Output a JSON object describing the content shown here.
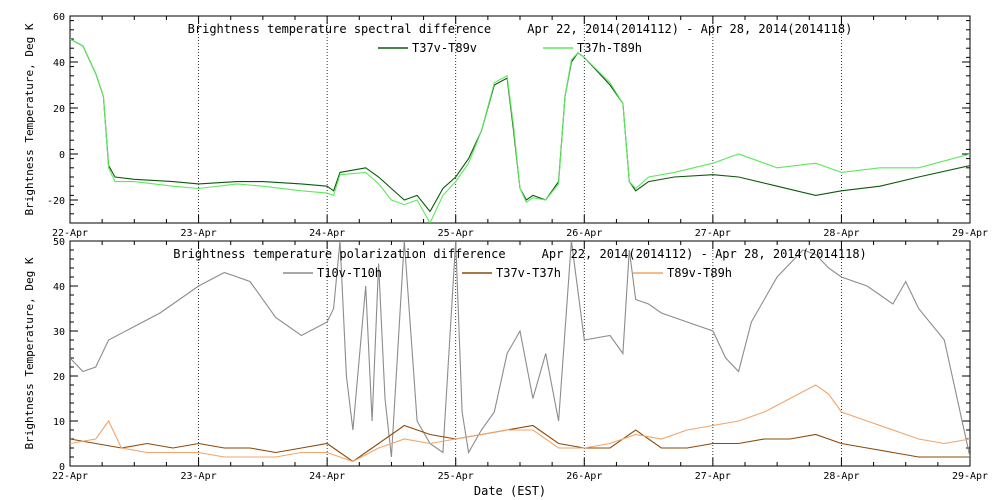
{
  "x_label": "Date (EST)",
  "date_ticks": [
    "22-Apr",
    "23-Apr",
    "24-Apr",
    "25-Apr",
    "26-Apr",
    "27-Apr",
    "28-Apr",
    "29-Apr"
  ],
  "colors": {
    "T37v-T89v": "#0b5a0b",
    "T37h-T89h": "#5ee85e",
    "T10v-T10h": "#8c8c8c",
    "T37v-T37h": "#8b4a0a",
    "T89v-T89h": "#f2a56a"
  },
  "chart_data": [
    {
      "type": "line",
      "title": "Brightness temperature spectral difference     Apr 22, 2014(2014112) - Apr 28, 2014(2014118)",
      "ylabel": "Brightness Temperature, Deg K",
      "xlim": [
        22,
        29
      ],
      "ylim": [
        -30,
        60
      ],
      "yticks": [
        -20,
        0,
        20,
        40,
        60
      ],
      "grid": "vertical dotted at day boundaries",
      "legend": "top-center",
      "series": [
        {
          "name": "T37v-T89v",
          "color": "#0b5a0b",
          "x": [
            22.0,
            22.1,
            22.2,
            22.26,
            22.3,
            22.35,
            22.5,
            22.8,
            23.0,
            23.3,
            23.5,
            23.8,
            24.0,
            24.05,
            24.1,
            24.3,
            24.4,
            24.5,
            24.6,
            24.7,
            24.8,
            24.9,
            25.0,
            25.1,
            25.2,
            25.3,
            25.4,
            25.45,
            25.5,
            25.55,
            25.6,
            25.7,
            25.8,
            25.85,
            25.9,
            25.95,
            26.0,
            26.2,
            26.3,
            26.35,
            26.4,
            26.5,
            26.7,
            27.0,
            27.2,
            27.5,
            27.8,
            28.0,
            28.3,
            28.6,
            29.0
          ],
          "y": [
            50,
            47,
            35,
            25,
            -5,
            -10,
            -11,
            -12,
            -13,
            -12,
            -12,
            -13,
            -14,
            -16,
            -8,
            -6,
            -10,
            -15,
            -20,
            -18,
            -25,
            -15,
            -10,
            -2,
            10,
            30,
            33,
            10,
            -15,
            -20,
            -18,
            -20,
            -12,
            25,
            40,
            44,
            42,
            30,
            22,
            -12,
            -16,
            -12,
            -10,
            -9,
            -10,
            -14,
            -18,
            -16,
            -14,
            -10,
            -5
          ]
        },
        {
          "name": "T37h-T89h",
          "color": "#5ee85e",
          "x": [
            22.0,
            22.1,
            22.2,
            22.26,
            22.3,
            22.35,
            22.5,
            22.8,
            23.0,
            23.3,
            23.5,
            23.8,
            24.0,
            24.05,
            24.1,
            24.3,
            24.4,
            24.5,
            24.6,
            24.7,
            24.8,
            24.9,
            25.0,
            25.1,
            25.2,
            25.3,
            25.4,
            25.45,
            25.5,
            25.55,
            25.6,
            25.7,
            25.8,
            25.85,
            25.9,
            25.95,
            26.0,
            26.2,
            26.3,
            26.35,
            26.4,
            26.5,
            26.7,
            27.0,
            27.2,
            27.5,
            27.8,
            28.0,
            28.3,
            28.6,
            29.0
          ],
          "y": [
            50,
            47,
            35,
            25,
            -6,
            -12,
            -12,
            -14,
            -15,
            -13,
            -14,
            -16,
            -17,
            -18,
            -9,
            -8,
            -13,
            -20,
            -22,
            -20,
            -30,
            -18,
            -12,
            -4,
            10,
            31,
            34,
            12,
            -15,
            -21,
            -19,
            -20,
            -13,
            25,
            41,
            44,
            42,
            31,
            22,
            -12,
            -15,
            -10,
            -8,
            -4,
            0,
            -6,
            -4,
            -8,
            -6,
            -6,
            0
          ]
        }
      ]
    },
    {
      "type": "line",
      "title": "Brightness temperature polarization difference     Apr 22, 2014(2014112) - Apr 28, 2014(2014118)",
      "ylabel": "Brightness Temperature, Deg K",
      "xlim": [
        22,
        29
      ],
      "ylim": [
        0,
        50
      ],
      "yticks": [
        0,
        10,
        20,
        30,
        40,
        50
      ],
      "grid": "vertical dotted at day boundaries",
      "legend": "top-center",
      "series": [
        {
          "name": "T10v-T10h",
          "color": "#8c8c8c",
          "x": [
            22.0,
            22.1,
            22.2,
            22.3,
            22.5,
            22.7,
            22.8,
            23.0,
            23.2,
            23.4,
            23.6,
            23.8,
            24.0,
            24.05,
            24.1,
            24.15,
            24.2,
            24.3,
            24.35,
            24.4,
            24.45,
            24.5,
            24.6,
            24.7,
            24.8,
            24.9,
            25.0,
            25.05,
            25.1,
            25.2,
            25.3,
            25.4,
            25.5,
            25.6,
            25.7,
            25.8,
            25.9,
            26.0,
            26.2,
            26.3,
            26.35,
            26.4,
            26.5,
            26.6,
            26.8,
            27.0,
            27.1,
            27.2,
            27.3,
            27.5,
            27.7,
            27.8,
            27.9,
            28.0,
            28.2,
            28.4,
            28.5,
            28.6,
            28.8,
            29.0
          ],
          "y": [
            24,
            21,
            22,
            28,
            31,
            34,
            36,
            40,
            43,
            41,
            33,
            29,
            32,
            35,
            50,
            20,
            8,
            40,
            10,
            45,
            15,
            2,
            50,
            10,
            5,
            3,
            50,
            12,
            3,
            8,
            12,
            25,
            30,
            15,
            25,
            10,
            50,
            28,
            29,
            25,
            48,
            37,
            36,
            34,
            32,
            30,
            24,
            21,
            32,
            42,
            48,
            47,
            44,
            42,
            40,
            36,
            41,
            35,
            28,
            2
          ]
        },
        {
          "name": "T37v-T37h",
          "color": "#8b4a0a",
          "x": [
            22.0,
            22.2,
            22.4,
            22.6,
            22.8,
            23.0,
            23.2,
            23.4,
            23.6,
            23.8,
            24.0,
            24.2,
            24.4,
            24.6,
            24.8,
            25.0,
            25.2,
            25.4,
            25.6,
            25.8,
            26.0,
            26.2,
            26.4,
            26.6,
            26.8,
            27.0,
            27.2,
            27.4,
            27.6,
            27.8,
            28.0,
            28.2,
            28.4,
            28.6,
            28.8,
            29.0
          ],
          "y": [
            6,
            5,
            4,
            5,
            4,
            5,
            4,
            4,
            3,
            4,
            5,
            1,
            5,
            9,
            7,
            6,
            7,
            8,
            9,
            5,
            4,
            4,
            8,
            4,
            4,
            5,
            5,
            6,
            6,
            7,
            5,
            4,
            3,
            2,
            2,
            2
          ]
        },
        {
          "name": "T89v-T89h",
          "color": "#f2a56a",
          "x": [
            22.0,
            22.2,
            22.3,
            22.4,
            22.6,
            22.8,
            23.0,
            23.2,
            23.4,
            23.6,
            23.8,
            24.0,
            24.2,
            24.4,
            24.6,
            24.8,
            25.0,
            25.2,
            25.4,
            25.6,
            25.8,
            26.0,
            26.2,
            26.4,
            26.6,
            26.8,
            27.0,
            27.2,
            27.4,
            27.6,
            27.8,
            27.9,
            28.0,
            28.2,
            28.4,
            28.6,
            28.8,
            29.0
          ],
          "y": [
            5,
            6,
            10,
            4,
            3,
            3,
            3,
            2,
            2,
            2,
            3,
            3,
            1,
            4,
            6,
            5,
            6,
            7,
            8,
            8,
            4,
            4,
            5,
            7,
            6,
            8,
            9,
            10,
            12,
            15,
            18,
            16,
            12,
            10,
            8,
            6,
            5,
            6
          ]
        }
      ]
    }
  ]
}
